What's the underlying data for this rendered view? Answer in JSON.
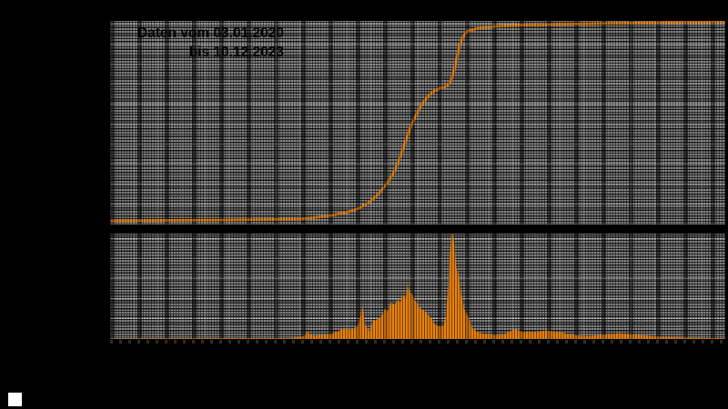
{
  "title": {
    "line1": "Daten vom 03.01.2020",
    "line2": "bis 10.12.2023",
    "color": "#000000"
  },
  "colors": {
    "background": "#000000",
    "panel_gray": "#8a8a8a",
    "grid_black": "#000000",
    "series_orange": "#ea830e",
    "footer_swatch": "#ffffff"
  },
  "chart_data": [
    {
      "type": "line",
      "id": "upper-cumulative-curve",
      "title": "Daten vom 03.01.2020 bis 10.12.2023",
      "color": "#ea830e",
      "x_domain_labels": [
        "03.01.2020",
        "10.12.2023"
      ],
      "axis_tick_labels_visible": false,
      "grid": true,
      "points_norm": [
        [
          0.001,
          0.018
        ],
        [
          0.087,
          0.02
        ],
        [
          0.176,
          0.022
        ],
        [
          0.265,
          0.025
        ],
        [
          0.309,
          0.027
        ],
        [
          0.339,
          0.036
        ],
        [
          0.361,
          0.045
        ],
        [
          0.383,
          0.058
        ],
        [
          0.405,
          0.08
        ],
        [
          0.423,
          0.112
        ],
        [
          0.438,
          0.156
        ],
        [
          0.45,
          0.201
        ],
        [
          0.462,
          0.259
        ],
        [
          0.472,
          0.335
        ],
        [
          0.482,
          0.424
        ],
        [
          0.491,
          0.496
        ],
        [
          0.5,
          0.554
        ],
        [
          0.509,
          0.598
        ],
        [
          0.518,
          0.634
        ],
        [
          0.527,
          0.656
        ],
        [
          0.537,
          0.67
        ],
        [
          0.547,
          0.679
        ],
        [
          0.553,
          0.696
        ],
        [
          0.559,
          0.754
        ],
        [
          0.564,
          0.826
        ],
        [
          0.568,
          0.879
        ],
        [
          0.574,
          0.924
        ],
        [
          0.581,
          0.951
        ],
        [
          0.598,
          0.964
        ],
        [
          0.627,
          0.973
        ],
        [
          0.679,
          0.98
        ],
        [
          0.738,
          0.984
        ],
        [
          0.827,
          0.989
        ],
        [
          0.916,
          0.993
        ],
        [
          0.999,
          0.996
        ]
      ]
    },
    {
      "type": "bar",
      "id": "lower-daily-values",
      "color": "#ea830e",
      "axis_tick_labels_visible": false,
      "grid": true,
      "points_norm": [
        [
          0.001,
          0.0
        ],
        [
          0.294,
          0.004
        ],
        [
          0.317,
          0.026
        ],
        [
          0.32,
          0.069
        ],
        [
          0.324,
          0.043
        ],
        [
          0.331,
          0.026
        ],
        [
          0.346,
          0.034
        ],
        [
          0.358,
          0.043
        ],
        [
          0.368,
          0.06
        ],
        [
          0.376,
          0.086
        ],
        [
          0.383,
          0.095
        ],
        [
          0.39,
          0.078
        ],
        [
          0.398,
          0.103
        ],
        [
          0.402,
          0.112
        ],
        [
          0.407,
          0.198
        ],
        [
          0.41,
          0.293
        ],
        [
          0.413,
          0.155
        ],
        [
          0.417,
          0.095
        ],
        [
          0.422,
          0.069
        ],
        [
          0.428,
          0.172
        ],
        [
          0.432,
          0.172
        ],
        [
          0.438,
          0.198
        ],
        [
          0.442,
          0.216
        ],
        [
          0.447,
          0.284
        ],
        [
          0.451,
          0.25
        ],
        [
          0.457,
          0.345
        ],
        [
          0.463,
          0.31
        ],
        [
          0.467,
          0.371
        ],
        [
          0.472,
          0.336
        ],
        [
          0.476,
          0.414
        ],
        [
          0.481,
          0.371
        ],
        [
          0.484,
          0.5
        ],
        [
          0.487,
          0.44
        ],
        [
          0.49,
          0.431
        ],
        [
          0.494,
          0.371
        ],
        [
          0.499,
          0.336
        ],
        [
          0.501,
          0.302
        ],
        [
          0.507,
          0.276
        ],
        [
          0.512,
          0.259
        ],
        [
          0.516,
          0.224
        ],
        [
          0.521,
          0.198
        ],
        [
          0.527,
          0.138
        ],
        [
          0.533,
          0.121
        ],
        [
          0.538,
          0.112
        ],
        [
          0.543,
          0.129
        ],
        [
          0.546,
          0.198
        ],
        [
          0.55,
          0.457
        ],
        [
          0.553,
          0.802
        ],
        [
          0.556,
          1.0
        ],
        [
          0.559,
          0.888
        ],
        [
          0.562,
          0.672
        ],
        [
          0.565,
          0.629
        ],
        [
          0.568,
          0.5
        ],
        [
          0.571,
          0.397
        ],
        [
          0.575,
          0.284
        ],
        [
          0.58,
          0.224
        ],
        [
          0.583,
          0.198
        ],
        [
          0.587,
          0.112
        ],
        [
          0.595,
          0.069
        ],
        [
          0.602,
          0.052
        ],
        [
          0.612,
          0.043
        ],
        [
          0.627,
          0.034
        ],
        [
          0.642,
          0.043
        ],
        [
          0.649,
          0.069
        ],
        [
          0.657,
          0.086
        ],
        [
          0.664,
          0.078
        ],
        [
          0.672,
          0.06
        ],
        [
          0.679,
          0.069
        ],
        [
          0.689,
          0.06
        ],
        [
          0.698,
          0.069
        ],
        [
          0.709,
          0.078
        ],
        [
          0.719,
          0.069
        ],
        [
          0.731,
          0.06
        ],
        [
          0.738,
          0.052
        ],
        [
          0.753,
          0.034
        ],
        [
          0.768,
          0.026
        ],
        [
          0.783,
          0.026
        ],
        [
          0.797,
          0.034
        ],
        [
          0.817,
          0.043
        ],
        [
          0.827,
          0.052
        ],
        [
          0.842,
          0.043
        ],
        [
          0.857,
          0.034
        ],
        [
          0.876,
          0.026
        ],
        [
          0.894,
          0.017
        ],
        [
          0.916,
          0.013
        ],
        [
          0.946,
          0.009
        ],
        [
          0.975,
          0.004
        ],
        [
          0.999,
          0.002
        ]
      ]
    }
  ]
}
